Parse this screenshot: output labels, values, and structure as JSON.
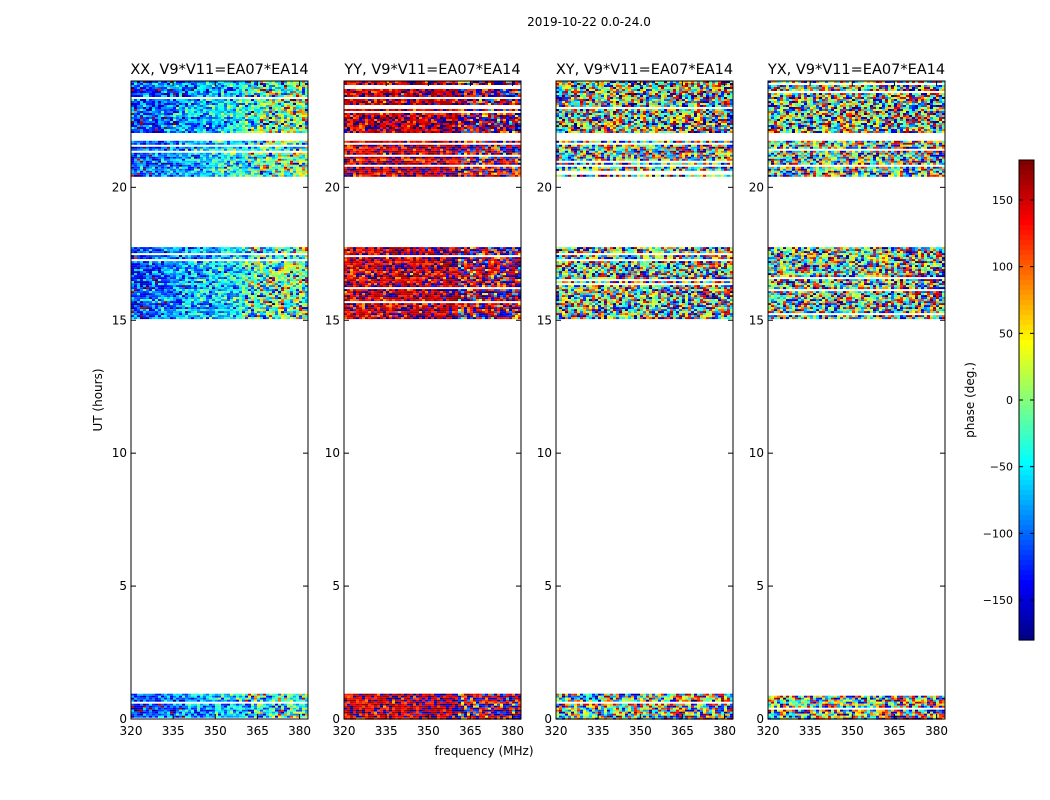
{
  "figure": {
    "suptitle": "2019-10-22 0.0-24.0"
  },
  "chart_data": {
    "type": "heatmap",
    "xlabel": "frequency (MHz)",
    "ylabel": "UT (hours)",
    "xlim": [
      320,
      383
    ],
    "ylim": [
      0,
      24
    ],
    "x_ticks": [
      320,
      335,
      350,
      365,
      380
    ],
    "y_ticks": [
      0,
      5,
      10,
      15,
      20
    ],
    "data_bands_ut": [
      [
        0.0,
        0.95
      ],
      [
        15.05,
        17.75
      ],
      [
        20.45,
        21.75
      ],
      [
        22.1,
        24.0
      ]
    ],
    "panels": [
      {
        "title": "XX, V9*V11=EA07*EA14",
        "polarization": "XX",
        "phase_mean_low_freq": -120,
        "phase_mean_high_freq": 0,
        "scatter_deg": 70
      },
      {
        "title": "YY, V9*V11=EA07*EA14",
        "polarization": "YY",
        "phase_mean_low_freq": 150,
        "phase_mean_high_freq": 170,
        "scatter_deg": 60
      },
      {
        "title": "XY, V9*V11=EA07*EA14",
        "polarization": "XY",
        "phase_mean_low_freq": 0,
        "phase_mean_high_freq": 0,
        "scatter_deg": 180
      },
      {
        "title": "YX, V9*V11=EA07*EA14",
        "polarization": "YX",
        "phase_mean_low_freq": 0,
        "phase_mean_high_freq": 0,
        "scatter_deg": 180
      }
    ],
    "colorbar": {
      "label": "phase (deg.)",
      "range": [
        -180,
        180
      ],
      "ticks": [
        150,
        100,
        50,
        0,
        -50,
        -100,
        -150
      ],
      "tick_labels": [
        "150",
        "100",
        "50",
        "0",
        "−50",
        "−100",
        "−150"
      ],
      "colormap": "jet"
    }
  }
}
